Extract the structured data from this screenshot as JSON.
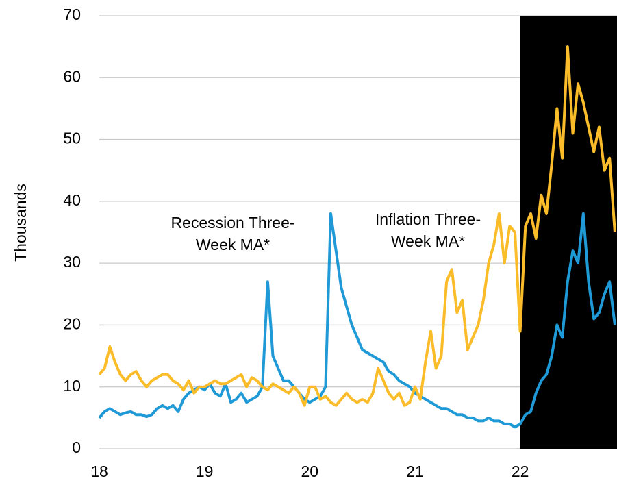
{
  "chart_data": {
    "type": "line",
    "y_label": "Thousands",
    "annotations": [
      [
        "Recession Three-",
        "Week MA*"
      ],
      [
        "Inflation Three-",
        "Week MA*"
      ]
    ],
    "x": [
      18.0,
      18.05,
      18.1,
      18.15,
      18.2,
      18.25,
      18.3,
      18.35,
      18.4,
      18.45,
      18.5,
      18.55,
      18.6,
      18.65,
      18.7,
      18.75,
      18.8,
      18.85,
      18.9,
      18.95,
      19.0,
      19.05,
      19.1,
      19.15,
      19.2,
      19.25,
      19.3,
      19.35,
      19.4,
      19.45,
      19.5,
      19.55,
      19.6,
      19.65,
      19.7,
      19.75,
      19.8,
      19.85,
      19.9,
      19.95,
      20.0,
      20.05,
      20.1,
      20.15,
      20.2,
      20.25,
      20.3,
      20.35,
      20.4,
      20.45,
      20.5,
      20.55,
      20.6,
      20.65,
      20.7,
      20.75,
      20.8,
      20.85,
      20.9,
      20.95,
      21.0,
      21.05,
      21.1,
      21.15,
      21.2,
      21.25,
      21.3,
      21.35,
      21.4,
      21.45,
      21.5,
      21.55,
      21.6,
      21.65,
      21.7,
      21.75,
      21.8,
      21.85,
      21.9,
      21.95,
      22.0,
      22.05,
      22.1,
      22.15,
      22.2,
      22.25,
      22.3,
      22.35,
      22.4,
      22.45,
      22.5,
      22.55,
      22.6,
      22.65,
      22.7,
      22.75,
      22.8,
      22.85,
      22.9
    ],
    "series": [
      {
        "color": "#1f9ad6",
        "values": [
          5,
          6,
          6.5,
          6,
          5.5,
          5.8,
          6,
          5.5,
          5.5,
          5.2,
          5.5,
          6.5,
          7,
          6.5,
          7,
          6,
          8,
          9,
          9.5,
          10,
          9.5,
          10.5,
          9,
          8.5,
          10.5,
          7.5,
          8,
          9,
          7.5,
          8,
          8.5,
          10,
          27,
          15,
          13,
          11,
          11,
          10,
          9,
          8,
          7.5,
          8,
          8.5,
          10,
          38,
          32,
          26,
          23,
          20,
          18,
          16,
          15.5,
          15,
          14.5,
          14,
          12.5,
          12,
          11,
          10.5,
          10,
          9,
          8.5,
          8,
          7.5,
          7,
          6.5,
          6.5,
          6,
          5.5,
          5.5,
          5,
          5,
          4.5,
          4.5,
          5,
          4.5,
          4.5,
          4,
          4,
          3.5,
          4,
          5.5,
          6,
          9,
          11,
          12,
          15,
          20,
          18,
          27,
          32,
          30,
          38,
          27,
          21,
          22,
          25,
          27,
          20
        ]
      },
      {
        "color": "#fbbc2a",
        "values": [
          12,
          13,
          16.5,
          14,
          12,
          11,
          12,
          12.5,
          11,
          10,
          11,
          11.5,
          12,
          12,
          11,
          10.5,
          9.5,
          11,
          9,
          10,
          10,
          10.5,
          11,
          10.5,
          10.5,
          11,
          11.5,
          12,
          10,
          11.5,
          11,
          10,
          9.5,
          10.5,
          10,
          9.5,
          9,
          10,
          9,
          7,
          10,
          10,
          8,
          8.5,
          7.5,
          7,
          8,
          9,
          8,
          7.5,
          8,
          7.5,
          9,
          13,
          11,
          9,
          8,
          9,
          7,
          7.5,
          10,
          8,
          14,
          19,
          13,
          15,
          27,
          29,
          22,
          24,
          16,
          18,
          20,
          24,
          30,
          33,
          38,
          30,
          36,
          35,
          19,
          36,
          38,
          34,
          41,
          38,
          46,
          55,
          47,
          65,
          51,
          59,
          56,
          52,
          48,
          52,
          45,
          47,
          35
        ]
      }
    ],
    "xlim": [
      18,
      22.92
    ],
    "xticks": [
      18,
      19,
      20,
      21,
      22
    ],
    "ylim": [
      0,
      70
    ],
    "yticks": [
      0,
      10,
      20,
      30,
      40,
      50,
      60,
      70
    ],
    "grid": true,
    "shade_from": 22,
    "shade_color": "#000000"
  }
}
